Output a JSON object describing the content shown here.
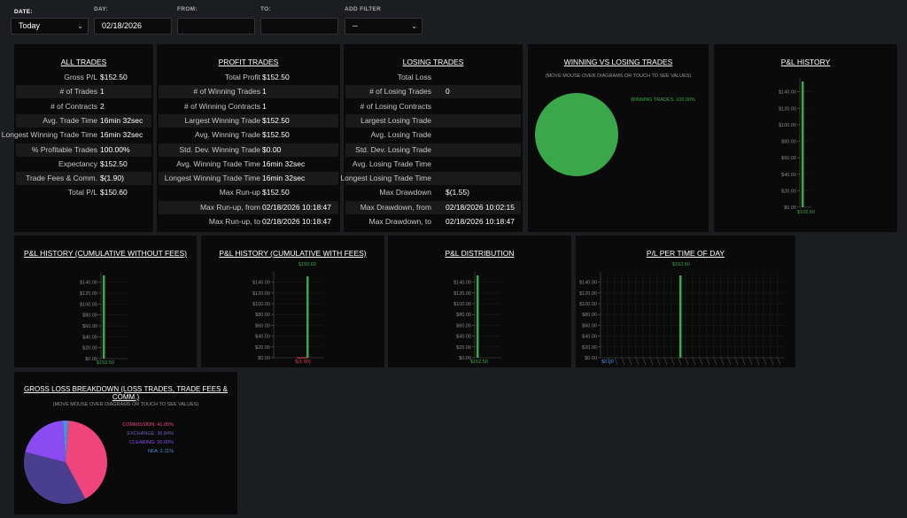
{
  "filters": {
    "date_label": "DATE:",
    "date_value": "Today",
    "day_label": "DAY:",
    "day_value": "02/18/2026",
    "from_label": "FROM:",
    "from_value": "",
    "to_label": "TO:",
    "to_value": "",
    "add_filter_label": "ADD FILTER",
    "add_filter_value": "--"
  },
  "all_trades": {
    "title": "ALL TRADES",
    "rows": [
      {
        "label": "Gross P/L",
        "value": "$152.50"
      },
      {
        "label": "# of Trades",
        "value": "1"
      },
      {
        "label": "# of Contracts",
        "value": "2"
      },
      {
        "label": "Avg. Trade Time",
        "value": "16min 32sec"
      },
      {
        "label": "Longest Winning Trade Time",
        "value": "16min 32sec"
      },
      {
        "label": "% Profitable Trades",
        "value": "100.00%"
      },
      {
        "label": "Expectancy",
        "value": "$152.50"
      },
      {
        "label": "Trade Fees & Comm.",
        "value": "$(1.90)"
      },
      {
        "label": "Total P/L",
        "value": "$150.60"
      }
    ]
  },
  "profit_trades": {
    "title": "PROFIT TRADES",
    "rows": [
      {
        "label": "Total Profit",
        "value": "$152.50"
      },
      {
        "label": "# of Winning Trades",
        "value": "1"
      },
      {
        "label": "# of Winning Contracts",
        "value": "1"
      },
      {
        "label": "Largest Winning Trade",
        "value": "$152.50"
      },
      {
        "label": "Avg. Winning Trade",
        "value": "$152.50"
      },
      {
        "label": "Std. Dev. Winning Trade",
        "value": "$0.00"
      },
      {
        "label": "Avg. Winning Trade Time",
        "value": "16min 32sec"
      },
      {
        "label": "Longest Winning Trade Time",
        "value": "16min 32sec"
      },
      {
        "label": "Max Run-up",
        "value": "$152.50"
      },
      {
        "label": "Max Run-up, from",
        "value": "02/18/2026 10:18:47"
      },
      {
        "label": "Max Run-up, to",
        "value": "02/18/2026 10:18:47"
      }
    ]
  },
  "losing_trades": {
    "title": "LOSING TRADES",
    "rows": [
      {
        "label": "Total Loss",
        "value": ""
      },
      {
        "label": "# of Losing Trades",
        "value": "0"
      },
      {
        "label": "# of Losing Contracts",
        "value": ""
      },
      {
        "label": "Largest Losing Trade",
        "value": ""
      },
      {
        "label": "Avg. Losing Trade",
        "value": ""
      },
      {
        "label": "Std. Dev. Losing Trade",
        "value": ""
      },
      {
        "label": "Avg. Losing Trade Time",
        "value": ""
      },
      {
        "label": "Longest Losing Trade Time",
        "value": ""
      },
      {
        "label": "Max Drawdown",
        "value": "$(1.55)"
      },
      {
        "label": "Max Drawdown, from",
        "value": "02/18/2026 10:02:15"
      },
      {
        "label": "Max Drawdown, to",
        "value": "02/18/2026 10:18:47"
      }
    ]
  },
  "win_loss": {
    "title": "WINNING VS LOSING TRADES",
    "subtitle": "(MOVE MOUSE OVER DIAGRAMS OR TOUCH TO SEE VALUES)",
    "legend": "WINNING TRADES: 100.00%",
    "color": "#3aa84a"
  },
  "gross_loss": {
    "title": "GROSS LOSS BREAKDOWN (LOSS TRADES, TRADE FEES & COMM.)",
    "subtitle": "(MOVE MOUSE OVER DIAGRAMS OR TOUCH TO SEE VALUES)"
  },
  "chart_titles": {
    "pl_history": "P&L HISTORY",
    "pl_cum_no_fees": "P&L HISTORY (CUMULATIVE WITHOUT FEES)",
    "pl_cum_fees": "P&L HISTORY (CUMULATIVE WITH FEES)",
    "pl_dist": "P&L DISTRIBUTION",
    "pl_time": "P/L PER TIME OF DAY"
  },
  "chart_data": [
    {
      "type": "pie",
      "categories": [
        "WINNING TRADES"
      ],
      "values": [
        100.0
      ],
      "title": "WINNING VS LOSING TRADES",
      "legend_labels": [
        "WINNING TRADES: 100.00%"
      ],
      "colors": [
        "#3aa84a"
      ]
    },
    {
      "type": "bar",
      "title": "P&L HISTORY",
      "ylim": [
        0,
        152.5
      ],
      "yticks": [
        "$0.00",
        "$20.00",
        "$40.00",
        "$60.00",
        "$80.00",
        "$100.00",
        "$120.00",
        "$140.00"
      ],
      "values": [
        152.5
      ],
      "value_labels": [
        "$152.50"
      ],
      "colors": [
        "#3aa84a"
      ]
    },
    {
      "type": "bar",
      "title": "P&L HISTORY (CUMULATIVE WITHOUT FEES)",
      "ylim": [
        0,
        152.5
      ],
      "yticks": [
        "$0.00",
        "$20.00",
        "$40.00",
        "$60.00",
        "$80.00",
        "$100.00",
        "$120.00",
        "$140.00"
      ],
      "values": [
        152.5
      ],
      "value_labels": [
        "$152.50"
      ],
      "colors": [
        "#3aa84a"
      ]
    },
    {
      "type": "bar",
      "title": "P&L HISTORY (CUMULATIVE WITH FEES)",
      "ylim": [
        0,
        150.6
      ],
      "yticks": [
        "$0.00",
        "$20.00",
        "$40.00",
        "$60.00",
        "$80.00",
        "$100.00",
        "$120.00",
        "$140.00"
      ],
      "values": [
        -1.9,
        150.6
      ],
      "value_labels": [
        "$(1.90)",
        "$150.60"
      ],
      "colors": [
        "#d9414e",
        "#3aa84a"
      ]
    },
    {
      "type": "bar",
      "title": "P&L DISTRIBUTION",
      "ylim": [
        0,
        152.5
      ],
      "yticks": [
        "$0.00",
        "$20.00",
        "$40.00",
        "$60.00",
        "$80.00",
        "$100.00",
        "$120.00",
        "$140.00"
      ],
      "values": [
        152.5
      ],
      "value_labels": [
        "$152.50"
      ],
      "colors": [
        "#3aa84a"
      ]
    },
    {
      "type": "bar",
      "title": "P/L PER TIME OF DAY",
      "ylim": [
        0,
        152.5
      ],
      "yticks": [
        "$0.00",
        "$20.00",
        "$40.00",
        "$60.00",
        "$80.00",
        "$100.00",
        "$120.00",
        "$140.00"
      ],
      "values": [
        152.5
      ],
      "value_labels": [
        "$152.50"
      ],
      "baseline_label": "$0.00",
      "colors": [
        "#3aa84a"
      ]
    },
    {
      "type": "pie",
      "title": "GROSS LOSS BREAKDOWN (LOSS TRADES, TRADE FEES & COMM.)",
      "categories": [
        "COMMISSION",
        "EXCHANGE",
        "CLEARING",
        "NFA"
      ],
      "values": [
        41.05,
        36.84,
        20.0,
        2.11
      ],
      "legend_labels": [
        "COMMISSION: 41.05%",
        "EXCHANGE: 36.84%",
        "CLEARING: 20.00%",
        "NFA: 2.11%"
      ],
      "colors": [
        "#f0457c",
        "#4a3f8e",
        "#8a4cf0",
        "#4a8fe0"
      ]
    }
  ]
}
